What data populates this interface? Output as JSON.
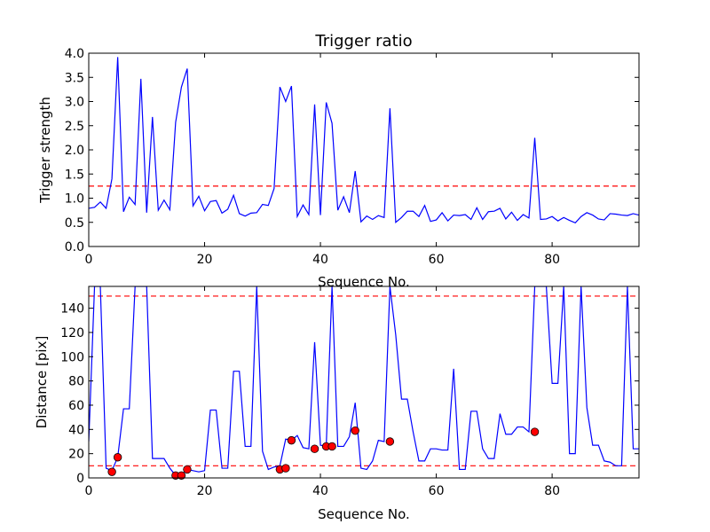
{
  "chart_data": [
    {
      "type": "line",
      "title": "Trigger ratio",
      "xlabel": "Sequence No.",
      "ylabel": "Trigger strength",
      "xlim": [
        0,
        95
      ],
      "ylim": [
        0,
        4.0
      ],
      "xticks": [
        "0",
        "20",
        "40",
        "60",
        "80"
      ],
      "yticks": [
        "0.0",
        "0.5",
        "1.0",
        "1.5",
        "2.0",
        "2.5",
        "3.0",
        "3.5",
        "4.0"
      ],
      "grid": false,
      "line_color": "#0000ff",
      "threshold": {
        "value": 1.25,
        "color": "#ff0000",
        "style": "dashed"
      },
      "x": [
        0,
        1,
        2,
        3,
        4,
        5,
        6,
        7,
        8,
        9,
        10,
        11,
        12,
        13,
        14,
        15,
        16,
        17,
        18,
        19,
        20,
        21,
        22,
        23,
        24,
        25,
        26,
        27,
        28,
        29,
        30,
        31,
        32,
        33,
        34,
        35,
        36,
        37,
        38,
        39,
        40,
        41,
        42,
        43,
        44,
        45,
        46,
        47,
        48,
        49,
        50,
        51,
        52,
        53,
        54,
        55,
        56,
        57,
        58,
        59,
        60,
        61,
        62,
        63,
        64,
        65,
        66,
        67,
        68,
        69,
        70,
        71,
        72,
        73,
        74,
        75,
        76,
        77,
        78,
        79,
        80,
        81,
        82,
        83,
        84,
        85,
        86,
        87,
        88,
        89,
        90,
        91,
        92,
        93,
        94,
        95
      ],
      "y": [
        0.79,
        0.81,
        0.92,
        0.79,
        1.4,
        3.92,
        0.72,
        1.02,
        0.87,
        3.47,
        0.7,
        2.68,
        0.75,
        0.96,
        0.76,
        2.57,
        3.3,
        3.68,
        0.84,
        1.04,
        0.74,
        0.93,
        0.95,
        0.69,
        0.77,
        1.06,
        0.68,
        0.63,
        0.69,
        0.7,
        0.87,
        0.85,
        1.2,
        3.3,
        3.0,
        3.32,
        0.62,
        0.86,
        0.66,
        2.94,
        0.65,
        2.98,
        2.55,
        0.75,
        1.03,
        0.7,
        1.56,
        0.51,
        0.63,
        0.56,
        0.64,
        0.6,
        2.86,
        0.5,
        0.6,
        0.73,
        0.73,
        0.62,
        0.85,
        0.52,
        0.55,
        0.7,
        0.53,
        0.65,
        0.64,
        0.66,
        0.56,
        0.8,
        0.56,
        0.72,
        0.73,
        0.79,
        0.57,
        0.71,
        0.54,
        0.66,
        0.59,
        2.25,
        0.56,
        0.57,
        0.62,
        0.53,
        0.6,
        0.54,
        0.49,
        0.62,
        0.7,
        0.65,
        0.57,
        0.55,
        0.68,
        0.67,
        0.65,
        0.64,
        0.68,
        0.65
      ]
    },
    {
      "type": "line",
      "title": "",
      "xlabel": "Sequence No.",
      "ylabel": "Distance [pix]",
      "xlim": [
        0,
        95
      ],
      "ylim": [
        0,
        158
      ],
      "xticks": [
        "0",
        "20",
        "40",
        "60",
        "80"
      ],
      "yticks": [
        "0",
        "20",
        "40",
        "60",
        "80",
        "100",
        "120",
        "140"
      ],
      "grid": false,
      "line_color": "#0000ff",
      "marker_color": "#ff0000",
      "thresholds": [
        {
          "value": 10,
          "color": "#ff0000",
          "style": "dashed"
        },
        {
          "value": 150,
          "color": "#ff0000",
          "style": "dashed"
        }
      ],
      "x": [
        0,
        1,
        2,
        3,
        4,
        5,
        6,
        7,
        8,
        9,
        10,
        11,
        12,
        13,
        14,
        15,
        16,
        17,
        18,
        19,
        20,
        21,
        22,
        23,
        24,
        25,
        26,
        27,
        28,
        29,
        30,
        31,
        32,
        33,
        34,
        35,
        36,
        37,
        38,
        39,
        40,
        41,
        42,
        43,
        44,
        45,
        46,
        47,
        48,
        49,
        50,
        51,
        52,
        53,
        54,
        55,
        56,
        57,
        58,
        59,
        60,
        61,
        62,
        63,
        64,
        65,
        66,
        67,
        68,
        69,
        70,
        71,
        72,
        73,
        74,
        75,
        76,
        77,
        78,
        79,
        80,
        81,
        82,
        83,
        84,
        85,
        86,
        87,
        88,
        89,
        90,
        91,
        92,
        93,
        94,
        95
      ],
      "y": [
        30,
        158,
        158,
        8,
        6,
        17,
        57,
        57,
        158,
        158,
        158,
        16,
        16,
        16,
        8,
        2,
        2,
        7,
        6,
        5,
        6,
        56,
        56,
        8,
        8,
        88,
        88,
        26,
        26,
        158,
        22,
        7,
        9,
        10,
        32,
        31,
        35,
        25,
        24,
        112,
        27,
        26,
        158,
        26,
        26,
        34,
        62,
        8,
        7,
        14,
        31,
        30,
        158,
        118,
        65,
        65,
        38,
        14,
        14,
        24,
        24,
        23,
        23,
        90,
        7,
        7,
        55,
        55,
        24,
        16,
        16,
        53,
        36,
        36,
        42,
        42,
        38,
        158,
        158,
        158,
        78,
        78,
        158,
        20,
        20,
        158,
        58,
        27,
        27,
        14,
        13,
        10,
        10,
        158,
        24,
        24
      ],
      "markers": {
        "x": [
          4,
          5,
          15,
          16,
          17,
          33,
          34,
          35,
          39,
          41,
          42,
          46,
          52,
          77
        ],
        "y": [
          5,
          17,
          2,
          2,
          7,
          7,
          8,
          31,
          24,
          26,
          26,
          39,
          30,
          38
        ]
      }
    }
  ]
}
